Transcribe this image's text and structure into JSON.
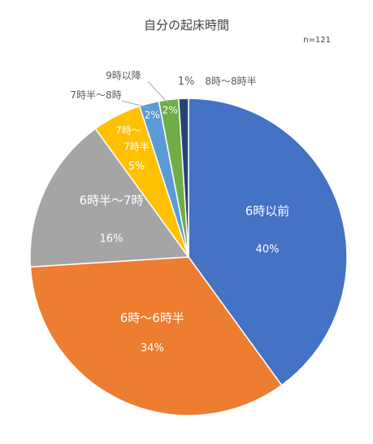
{
  "chart_data": {
    "type": "pie",
    "title": "自分の起床時間",
    "subtitle": "n=121",
    "slices": [
      {
        "label": "6時以前",
        "percent_label": "40%",
        "value": 40,
        "color": "#4472C4"
      },
      {
        "label": "6時～6時半",
        "percent_label": "34%",
        "value": 34,
        "color": "#ED7D31"
      },
      {
        "label": "6時半～7時",
        "percent_label": "16%",
        "value": 16,
        "color": "#A5A5A5"
      },
      {
        "label": "7時～7時半",
        "percent_label": "5%",
        "value": 5,
        "color": "#FFC000"
      },
      {
        "label": "7時半～8時",
        "percent_label": "2%",
        "value": 2,
        "color": "#5B9BD5"
      },
      {
        "label": "9時以降",
        "percent_label": "2%",
        "value": 2,
        "color": "#70AD47"
      },
      {
        "label": "8時～8時半",
        "percent_label": "1%",
        "value": 1,
        "color": "#264478"
      }
    ]
  }
}
